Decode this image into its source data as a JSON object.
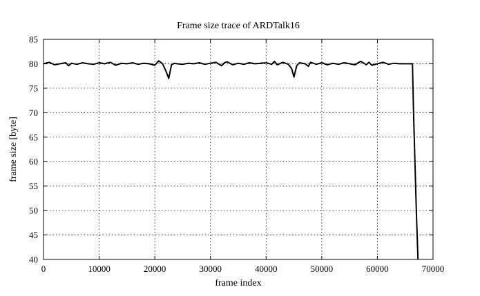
{
  "chart_data": {
    "type": "line",
    "title": "Frame size trace of ARDTalk16",
    "xlabel": "frame index",
    "ylabel": "frame size [byte]",
    "xlim": [
      0,
      70000
    ],
    "ylim": [
      40,
      85
    ],
    "x_ticks": [
      0,
      10000,
      20000,
      30000,
      40000,
      50000,
      60000,
      70000
    ],
    "y_ticks": [
      40,
      45,
      50,
      55,
      60,
      65,
      70,
      75,
      80,
      85
    ],
    "grid": true,
    "grid_style": "dotted",
    "line_color": "#000000",
    "series": [
      {
        "x": [
          0,
          1000,
          2000,
          3000,
          4000,
          4500,
          5000,
          6000,
          7000,
          8000,
          9000,
          10000,
          11000,
          12000,
          13000,
          14000,
          15000,
          16000,
          17000,
          18000,
          19000,
          20000,
          20700,
          21400,
          22000,
          22500,
          23000,
          23500,
          24000,
          25000,
          26000,
          27000,
          28000,
          29000,
          30000,
          31000,
          32000,
          32500,
          33000,
          34000,
          35000,
          36000,
          37000,
          38000,
          39000,
          40000,
          41000,
          41500,
          42000,
          43000,
          44000,
          44600,
          45000,
          45500,
          46000,
          47000,
          47600,
          48000,
          49000,
          50000,
          51000,
          52000,
          53000,
          54000,
          55000,
          56000,
          57000,
          58000,
          58500,
          59000,
          60000,
          61000,
          62000,
          63000,
          64000,
          65000,
          66300,
          66500,
          67000,
          67300
        ],
        "values": [
          80,
          80.3,
          79.8,
          80,
          80.2,
          79.6,
          80.1,
          79.9,
          80.2,
          80,
          79.9,
          80.2,
          80,
          80.3,
          79.7,
          80.1,
          80,
          80.2,
          79.9,
          80.1,
          80,
          79.7,
          80.6,
          80,
          78.5,
          77,
          79.8,
          80.1,
          80,
          79.9,
          80.1,
          80,
          80.2,
          79.9,
          80.1,
          80.3,
          79.6,
          80.2,
          80.4,
          79.8,
          80.1,
          79.9,
          80.2,
          80,
          80.1,
          80.2,
          79.9,
          80.5,
          79.8,
          80.3,
          79.9,
          79,
          77.3,
          79.6,
          80.2,
          80,
          79.5,
          80.3,
          79.9,
          80.2,
          79.8,
          80.1,
          79.9,
          80.2,
          80,
          79.8,
          80.5,
          79.8,
          80.3,
          79.7,
          80,
          80.3,
          79.9,
          80.1,
          80,
          80,
          80,
          70,
          50,
          40
        ]
      }
    ]
  }
}
